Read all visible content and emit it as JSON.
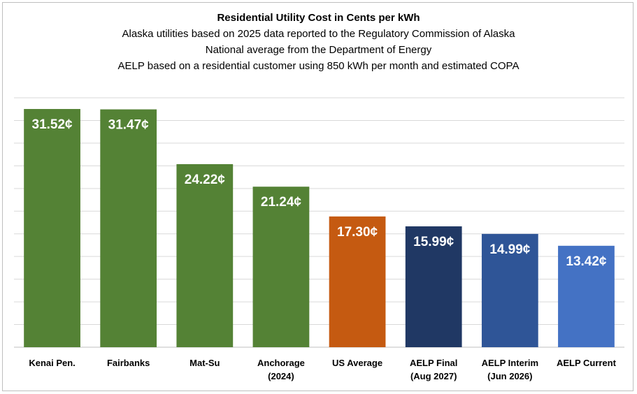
{
  "chart_data": {
    "type": "bar",
    "title": "Residential Utility Cost in Cents per kWh",
    "subtitles": [
      "Alaska utilities based on 2025 data reported to the Regulatory Commission of Alaska",
      "National average from the Department of Energy",
      "AELP based on a residential customer using 850 kWh per month and estimated COPA"
    ],
    "categories": [
      [
        "Kenai Pen."
      ],
      [
        "Fairbanks"
      ],
      [
        "Mat-Su"
      ],
      [
        "Anchorage",
        "(2024)"
      ],
      [
        "US Average"
      ],
      [
        "AELP Final",
        "(Aug 2027)"
      ],
      [
        "AELP Interim",
        "(Jun 2026)"
      ],
      [
        "AELP Current"
      ]
    ],
    "values": [
      31.52,
      31.47,
      24.22,
      21.24,
      17.3,
      15.99,
      14.99,
      13.42
    ],
    "data_labels": [
      "31.52¢",
      "31.47¢",
      "24.22¢",
      "21.24¢",
      "17.30¢",
      "15.99¢",
      "14.99¢",
      "13.42¢"
    ],
    "colors": [
      "#548235",
      "#548235",
      "#548235",
      "#548235",
      "#c55a11",
      "#203864",
      "#2f5597",
      "#4472c4"
    ],
    "ylim": [
      0,
      33
    ],
    "gridline_step": 3,
    "grid": true,
    "xlabel": "",
    "ylabel": ""
  }
}
